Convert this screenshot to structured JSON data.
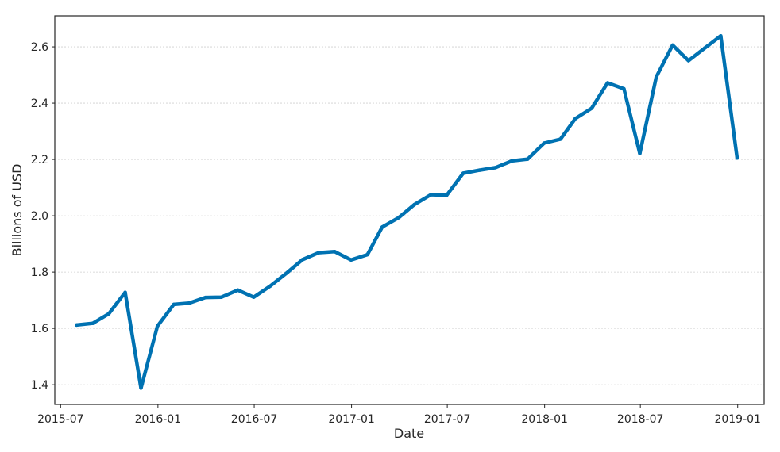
{
  "chart_data": {
    "type": "line",
    "title": "",
    "xlabel": "Date",
    "ylabel": "Billions of USD",
    "grid": "horizontal",
    "xlim": [
      "2015-06-20",
      "2019-02-20"
    ],
    "ylim": [
      1.33,
      2.71
    ],
    "x_ticks": [
      "2015-07",
      "2016-01",
      "2016-07",
      "2017-01",
      "2017-07",
      "2018-01",
      "2018-07",
      "2019-01"
    ],
    "y_ticks": [
      "1.4",
      "1.6",
      "1.8",
      "2.0",
      "2.2",
      "2.4",
      "2.6"
    ],
    "series": [
      {
        "color": "#0072b2",
        "x": [
          "2015-07-31",
          "2015-08-31",
          "2015-09-30",
          "2015-10-31",
          "2015-11-30",
          "2015-12-31",
          "2016-01-31",
          "2016-02-29",
          "2016-03-31",
          "2016-04-30",
          "2016-05-31",
          "2016-06-30",
          "2016-07-31",
          "2016-08-31",
          "2016-09-30",
          "2016-10-31",
          "2016-11-30",
          "2016-12-31",
          "2017-01-31",
          "2017-02-28",
          "2017-03-31",
          "2017-04-30",
          "2017-05-31",
          "2017-06-30",
          "2017-07-31",
          "2017-08-31",
          "2017-09-30",
          "2017-10-31",
          "2017-11-30",
          "2017-12-31",
          "2018-01-31",
          "2018-02-28",
          "2018-03-31",
          "2018-04-30",
          "2018-05-31",
          "2018-06-30",
          "2018-07-31",
          "2018-08-31",
          "2018-09-30",
          "2018-10-31",
          "2018-11-30",
          "2018-12-31"
        ],
        "values": [
          1.612,
          1.618,
          1.652,
          1.728,
          1.388,
          1.608,
          1.685,
          1.69,
          1.71,
          1.711,
          1.736,
          1.711,
          1.75,
          1.796,
          1.844,
          1.869,
          1.873,
          1.843,
          1.862,
          1.96,
          1.993,
          2.04,
          2.075,
          2.073,
          2.151,
          2.162,
          2.171,
          2.195,
          2.201,
          2.258,
          2.272,
          2.345,
          2.382,
          2.472,
          2.451,
          2.221,
          2.493,
          2.606,
          2.551,
          2.596,
          2.639,
          2.205
        ]
      }
    ]
  }
}
